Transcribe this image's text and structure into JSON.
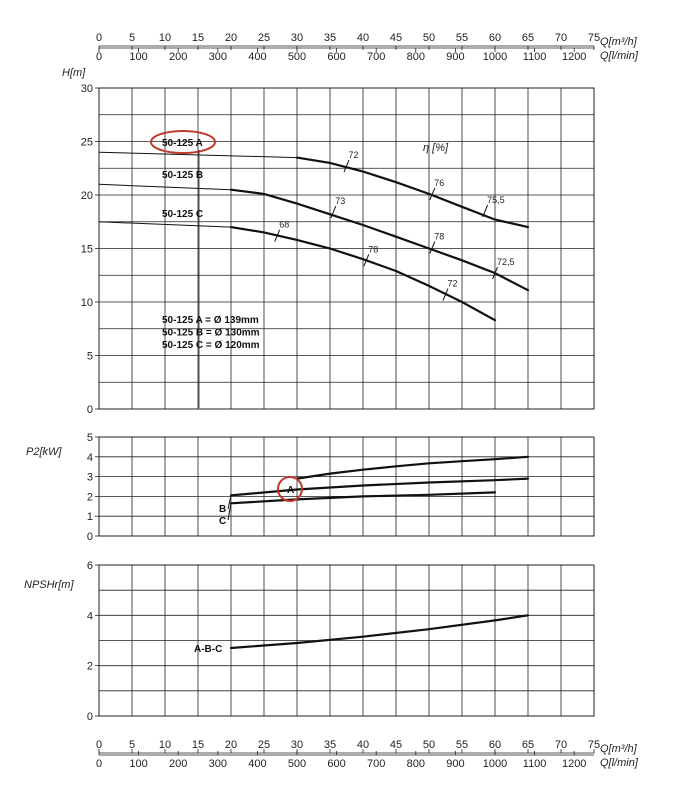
{
  "chart_data": {
    "type": "line",
    "axes": {
      "q_m3h": {
        "label": "Q[m³/h]",
        "min": 0,
        "max": 75,
        "ticks": [
          0,
          5,
          10,
          15,
          20,
          25,
          30,
          35,
          40,
          45,
          50,
          55,
          60,
          65,
          70,
          75
        ]
      },
      "q_lmin": {
        "label": "Q[l/min]",
        "min": 0,
        "max": 1250,
        "ticks": [
          0,
          100,
          200,
          300,
          400,
          500,
          600,
          700,
          800,
          900,
          1000,
          1100,
          1200
        ]
      }
    },
    "panels": [
      {
        "id": "head",
        "ylabel": "H[m]",
        "ylim": [
          0,
          30
        ],
        "yticks": [
          0,
          5,
          10,
          15,
          20,
          25,
          30
        ],
        "grid_step": 2.5,
        "efficiency_label": "η [%]",
        "series": [
          {
            "name": "50-125 A",
            "thin": [
              [
                0,
                24
              ],
              [
                30,
                23.5
              ]
            ],
            "thick": [
              [
                30,
                23.5
              ],
              [
                35,
                23
              ],
              [
                40,
                22.2
              ],
              [
                45,
                21.2
              ],
              [
                50,
                20.1
              ],
              [
                55,
                18.9
              ],
              [
                60,
                17.7
              ],
              [
                65,
                17
              ]
            ]
          },
          {
            "name": "50-125 B",
            "thin": [
              [
                0,
                21
              ],
              [
                20,
                20.5
              ]
            ],
            "thick": [
              [
                20,
                20.5
              ],
              [
                25,
                20.1
              ],
              [
                30,
                19.2
              ],
              [
                35,
                18.2
              ],
              [
                40,
                17.2
              ],
              [
                45,
                16.1
              ],
              [
                50,
                15
              ],
              [
                55,
                13.9
              ],
              [
                60,
                12.7
              ],
              [
                65,
                11.1
              ]
            ]
          },
          {
            "name": "50-125 C",
            "thin": [
              [
                0,
                17.5
              ],
              [
                20,
                17
              ]
            ],
            "thick": [
              [
                20,
                17
              ],
              [
                25,
                16.5
              ],
              [
                30,
                15.8
              ],
              [
                35,
                15
              ],
              [
                40,
                14
              ],
              [
                45,
                12.9
              ],
              [
                50,
                11.5
              ],
              [
                55,
                10
              ],
              [
                60,
                8.3
              ]
            ]
          }
        ],
        "efficiency_marks": [
          {
            "label": "72",
            "q": 37.5,
            "h": 22.7
          },
          {
            "label": "76",
            "q": 50.5,
            "h": 20.1
          },
          {
            "label": "75,5",
            "q": 58.5,
            "h": 18.5
          },
          {
            "label": "73",
            "q": 35.5,
            "h": 18.4
          },
          {
            "label": "78",
            "q": 50.5,
            "h": 15.1
          },
          {
            "label": "72,5",
            "q": 60,
            "h": 12.7
          },
          {
            "label": "68",
            "q": 27,
            "h": 16.2
          },
          {
            "label": "78",
            "q": 40.5,
            "h": 13.9
          },
          {
            "label": "72",
            "q": 52.5,
            "h": 10.7
          }
        ],
        "legend": [
          "50-125 A = Ø 139mm",
          "50-125 B = Ø 130mm",
          "50-125 C = Ø 120mm"
        ]
      },
      {
        "id": "power",
        "ylabel": "P2[kW]",
        "ylim": [
          0,
          5
        ],
        "yticks": [
          0,
          1,
          2,
          3,
          4,
          5
        ],
        "series": [
          {
            "name": "A",
            "points": [
              [
                30,
                2.9
              ],
              [
                35,
                3.15
              ],
              [
                40,
                3.35
              ],
              [
                45,
                3.52
              ],
              [
                50,
                3.67
              ],
              [
                55,
                3.78
              ],
              [
                60,
                3.88
              ],
              [
                65,
                4
              ]
            ]
          },
          {
            "name": "B",
            "points": [
              [
                20,
                2.05
              ],
              [
                30,
                2.35
              ],
              [
                40,
                2.55
              ],
              [
                50,
                2.7
              ],
              [
                60,
                2.82
              ],
              [
                65,
                2.9
              ]
            ]
          },
          {
            "name": "C",
            "points": [
              [
                20,
                1.65
              ],
              [
                30,
                1.85
              ],
              [
                40,
                2
              ],
              [
                50,
                2.08
              ],
              [
                60,
                2.2
              ]
            ]
          }
        ]
      },
      {
        "id": "npsh",
        "ylabel": "NPSHr[m]",
        "ylim": [
          0,
          6
        ],
        "yticks": [
          0,
          2,
          4,
          6
        ],
        "grid_step": 1,
        "series": [
          {
            "name": "A-B-C",
            "points": [
              [
                20,
                2.7
              ],
              [
                30,
                2.9
              ],
              [
                40,
                3.15
              ],
              [
                50,
                3.45
              ],
              [
                60,
                3.8
              ],
              [
                65,
                4
              ]
            ]
          }
        ]
      }
    ]
  },
  "highlight_color": "#c0392b"
}
